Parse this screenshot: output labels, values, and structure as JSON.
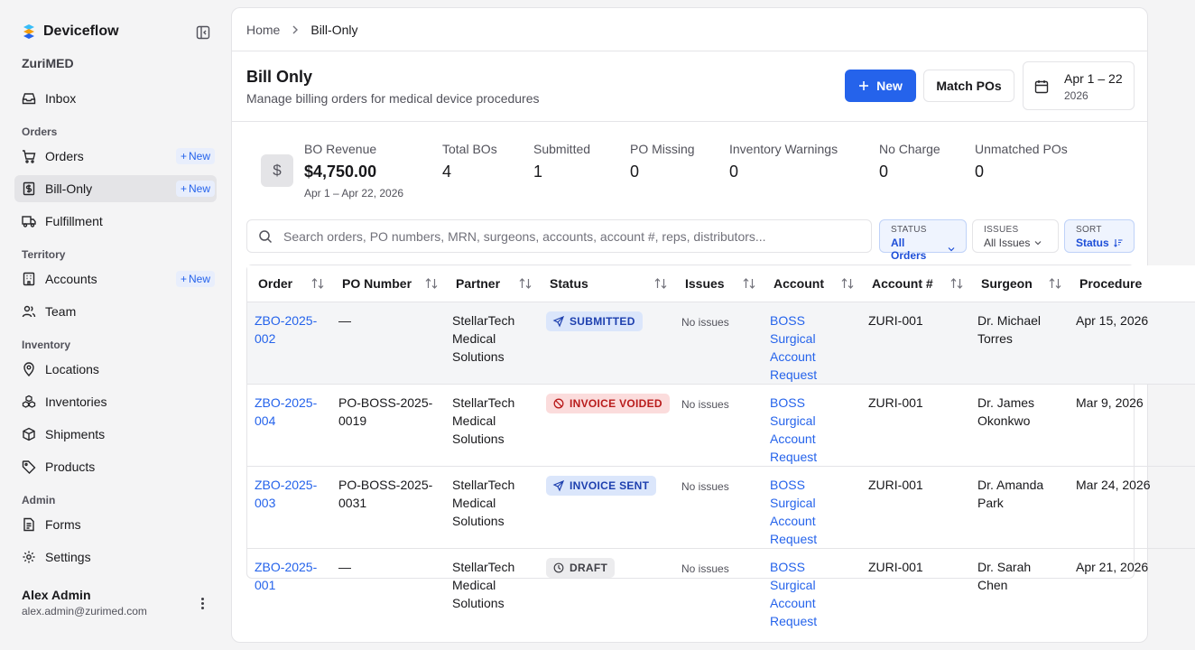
{
  "app": {
    "name": "Deviceflow",
    "org": "ZuriMED"
  },
  "sidebar": {
    "inbox": "Inbox",
    "sections": {
      "orders": "Orders",
      "territory": "Territory",
      "inventory": "Inventory",
      "admin": "Admin"
    },
    "items": {
      "orders": "Orders",
      "bill_only": "Bill-Only",
      "fulfillment": "Fulfillment",
      "accounts": "Accounts",
      "team": "Team",
      "locations": "Locations",
      "inventories": "Inventories",
      "shipments": "Shipments",
      "products": "Products",
      "forms": "Forms",
      "settings": "Settings"
    },
    "new_label": "New"
  },
  "user": {
    "name": "Alex Admin",
    "email": "alex.admin@zurimed.com"
  },
  "breadcrumb": {
    "home": "Home",
    "current": "Bill-Only"
  },
  "header": {
    "title": "Bill Only",
    "subtitle": "Manage billing orders for medical device procedures",
    "new_label": "New",
    "match_label": "Match POs",
    "date_range": "Apr 1 – 22",
    "date_year": "2026"
  },
  "stats": [
    {
      "label": "BO Revenue",
      "value": "$4,750.00",
      "sub": "Apr 1 – Apr 22, 2026"
    },
    {
      "label": "Total BOs",
      "value": "4"
    },
    {
      "label": "Submitted",
      "value": "1"
    },
    {
      "label": "PO Missing",
      "value": "0"
    },
    {
      "label": "Inventory Warnings",
      "value": "0"
    },
    {
      "label": "No Charge",
      "value": "0"
    },
    {
      "label": "Unmatched POs",
      "value": "0"
    }
  ],
  "search": {
    "placeholder": "Search orders, PO numbers, MRN, surgeons, accounts, account #, reps, distributors..."
  },
  "filters": {
    "status": {
      "caption": "STATUS",
      "value": "All Orders"
    },
    "issues": {
      "caption": "ISSUES",
      "value": "All Issues"
    },
    "sort": {
      "caption": "SORT",
      "value": "Status"
    }
  },
  "table": {
    "columns": [
      "Order",
      "PO Number",
      "Partner",
      "Status",
      "Issues",
      "Account",
      "Account #",
      "Surgeon",
      "Procedure"
    ],
    "rows": [
      {
        "order": "ZBO-2025-002",
        "po": "—",
        "partner": "StellarTech Medical Solutions",
        "status": "SUBMITTED",
        "issues": "No issues",
        "account": "BOSS Surgical Account Request",
        "account_no": "ZURI-001",
        "surgeon": "Dr. Michael Torres",
        "procedure": "Apr 15, 2026"
      },
      {
        "order": "ZBO-2025-004",
        "po": "PO-BOSS-2025-0019",
        "partner": "StellarTech Medical Solutions",
        "status": "INVOICE VOIDED",
        "issues": "No issues",
        "account": "BOSS Surgical Account Request",
        "account_no": "ZURI-001",
        "surgeon": "Dr. James Okonkwo",
        "procedure": "Mar 9, 2026"
      },
      {
        "order": "ZBO-2025-003",
        "po": "PO-BOSS-2025-0031",
        "partner": "StellarTech Medical Solutions",
        "status": "INVOICE SENT",
        "issues": "No issues",
        "account": "BOSS Surgical Account Request",
        "account_no": "ZURI-001",
        "surgeon": "Dr. Amanda Park",
        "procedure": "Mar 24, 2026"
      },
      {
        "order": "ZBO-2025-001",
        "po": "—",
        "partner": "StellarTech Medical Solutions",
        "status": "DRAFT",
        "issues": "No issues",
        "account": "BOSS Surgical Account Request",
        "account_no": "ZURI-001",
        "surgeon": "Dr. Sarah Chen",
        "procedure": "Apr 21, 2026"
      }
    ]
  },
  "colors": {
    "accent": "#2563eb",
    "voided": "#b91c1c"
  }
}
